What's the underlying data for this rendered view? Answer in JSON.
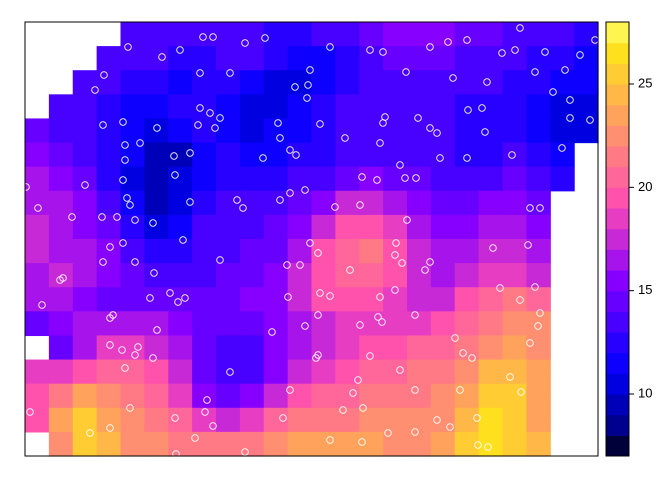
{
  "chart_data": {
    "type": "raster",
    "xlim": [
      0,
      573
    ],
    "ylim": [
      0,
      434
    ],
    "breaks": [
      7,
      8,
      9,
      10,
      11,
      12,
      13,
      14,
      15,
      16,
      17,
      18,
      19,
      20,
      21,
      22,
      23,
      24,
      25,
      26,
      27,
      28
    ],
    "colors": [
      "#00003a",
      "#00008f",
      "#0000b8",
      "#0000e0",
      "#0d00ff",
      "#2800ff",
      "#4800ff",
      "#6800ff",
      "#8700ff",
      "#a714eb",
      "#c729d6",
      "#e73dc2",
      "#ff52ad",
      "#ff6699",
      "#ff7a85",
      "#ff8f70",
      "#ffa35c",
      "#ffb847",
      "#ffcc33",
      "#ffe01f",
      "#fff550"
    ],
    "zticks": [
      10,
      15,
      20,
      25
    ],
    "raster": {
      "values": [
        [
          null,
          null,
          null,
          null,
          13,
          13,
          13,
          13,
          13,
          13,
          12,
          12,
          13,
          13,
          14,
          15,
          15,
          15,
          14,
          14,
          13,
          13,
          13,
          12
        ],
        [
          null,
          null,
          null,
          13,
          13,
          13,
          12,
          12,
          13,
          13,
          12,
          11,
          11,
          12,
          13,
          14,
          14,
          14,
          13,
          13,
          13,
          12,
          12,
          11
        ],
        [
          null,
          null,
          13,
          13,
          12,
          12,
          11,
          12,
          12,
          11,
          10,
          10,
          11,
          12,
          13,
          13,
          13,
          13,
          13,
          13,
          12,
          12,
          11,
          11
        ],
        [
          null,
          13,
          13,
          12,
          11,
          11,
          12,
          12,
          11,
          10,
          10,
          11,
          12,
          13,
          13,
          13,
          13,
          13,
          12,
          12,
          12,
          11,
          10,
          10
        ],
        [
          14,
          13,
          13,
          12,
          11,
          10,
          11,
          12,
          11,
          10,
          11,
          11,
          12,
          13,
          13,
          13,
          13,
          13,
          12,
          12,
          12,
          11,
          10,
          10
        ],
        [
          15,
          14,
          13,
          12,
          11,
          9,
          9,
          11,
          12,
          11,
          11,
          12,
          12,
          13,
          13,
          13,
          13,
          13,
          12,
          12,
          13,
          12,
          11,
          null
        ],
        [
          16,
          15,
          14,
          12,
          10,
          9,
          10,
          11,
          12,
          12,
          12,
          13,
          13,
          14,
          15,
          14,
          14,
          13,
          13,
          13,
          14,
          13,
          12,
          null
        ],
        [
          16,
          16,
          15,
          13,
          11,
          9,
          10,
          12,
          13,
          13,
          13,
          14,
          15,
          17,
          17,
          16,
          15,
          14,
          14,
          15,
          15,
          14,
          null,
          null
        ],
        [
          17,
          16,
          15,
          14,
          12,
          10,
          11,
          13,
          13,
          13,
          14,
          15,
          17,
          19,
          19,
          18,
          16,
          15,
          15,
          16,
          16,
          15,
          null,
          null
        ],
        [
          17,
          16,
          16,
          15,
          13,
          12,
          12,
          13,
          13,
          14,
          14,
          16,
          19,
          20,
          21,
          19,
          17,
          16,
          16,
          17,
          17,
          16,
          null,
          null
        ],
        [
          16,
          17,
          16,
          15,
          14,
          13,
          13,
          13,
          14,
          14,
          15,
          17,
          19,
          20,
          20,
          19,
          17,
          16,
          17,
          18,
          18,
          17,
          null,
          null
        ],
        [
          16,
          16,
          15,
          14,
          14,
          14,
          14,
          14,
          14,
          15,
          15,
          17,
          19,
          19,
          19,
          18,
          17,
          17,
          19,
          20,
          21,
          20,
          null,
          null
        ],
        [
          14,
          15,
          16,
          16,
          16,
          16,
          15,
          14,
          14,
          14,
          15,
          16,
          17,
          18,
          18,
          18,
          18,
          19,
          20,
          21,
          22,
          22,
          null,
          null
        ],
        [
          null,
          14,
          16,
          18,
          18,
          17,
          16,
          14,
          13,
          13,
          15,
          16,
          17,
          18,
          19,
          19,
          20,
          20,
          21,
          22,
          23,
          22,
          null,
          null
        ],
        [
          18,
          18,
          19,
          20,
          20,
          19,
          17,
          14,
          13,
          13,
          15,
          17,
          18,
          19,
          20,
          20,
          21,
          21,
          22,
          24,
          24,
          23,
          null,
          null
        ],
        [
          19,
          21,
          23,
          22,
          21,
          20,
          18,
          15,
          14,
          15,
          17,
          19,
          20,
          20,
          21,
          21,
          21,
          22,
          23,
          25,
          25,
          23,
          null,
          null
        ],
        [
          19,
          23,
          25,
          23,
          22,
          21,
          20,
          18,
          17,
          18,
          20,
          21,
          21,
          21,
          22,
          22,
          22,
          22,
          24,
          26,
          25,
          23,
          null,
          null
        ],
        [
          null,
          22,
          25,
          24,
          22,
          22,
          21,
          21,
          21,
          21,
          22,
          23,
          23,
          23,
          23,
          22,
          22,
          23,
          25,
          26,
          25,
          24,
          null,
          null
        ]
      ]
    },
    "points": {
      "x": [
        178,
        188,
        220,
        240,
        103,
        155,
        305,
        345,
        358,
        405,
        423,
        442,
        477,
        490,
        495,
        520,
        555,
        570,
        137,
        79,
        70,
        175,
        205,
        285,
        381,
        428,
        462,
        510,
        540,
        528,
        545,
        270,
        282,
        283,
        175,
        185,
        195,
        78,
        98,
        132,
        173,
        190,
        253,
        295,
        360,
        358,
        393,
        405,
        412,
        443,
        457,
        460,
        545,
        565,
        100,
        115,
        149,
        165,
        255,
        265,
        271,
        320,
        355,
        375,
        391,
        415,
        442,
        487,
        537,
        100,
        238,
        1,
        60,
        98,
        150,
        212,
        218,
        255,
        265,
        280,
        337,
        352,
        380,
        13,
        47,
        77,
        92,
        105,
        102,
        110,
        128,
        165,
        310,
        335,
        382,
        505,
        515,
        158,
        85,
        98,
        195,
        285,
        293,
        371,
        468,
        503,
        78,
        110,
        129,
        262,
        275,
        325,
        370,
        377,
        405,
        400,
        35,
        38,
        125,
        145,
        160,
        153,
        263,
        295,
        305,
        355,
        370,
        475,
        495,
        510,
        17,
        88,
        85,
        293,
        280,
        247,
        335,
        353,
        357,
        390,
        515,
        513,
        132,
        85,
        97,
        113,
        110,
        128,
        291,
        293,
        345,
        430,
        438,
        505,
        100,
        205,
        333,
        447,
        485,
        375,
        265,
        328,
        390,
        435,
        496,
        105,
        182,
        180,
        150,
        318,
        338,
        65,
        85,
        170,
        188,
        258,
        412,
        452,
        305,
        337,
        390,
        363,
        453,
        463,
        425,
        151,
        220,
        5
      ],
      "y": [
        419,
        419,
        413,
        418,
        409,
        406,
        409,
        406,
        404,
        409,
        414,
        416,
        403,
        406,
        428,
        404,
        401,
        416,
        399,
        381,
        366,
        383,
        383,
        386,
        384,
        378,
        374,
        384,
        386,
        364,
        356,
        369,
        358,
        371,
        348,
        343,
        338,
        331,
        334,
        328,
        331,
        328,
        333,
        332,
        339,
        333,
        338,
        328,
        323,
        346,
        348,
        324,
        338,
        336,
        311,
        313,
        300,
        303,
        318,
        306,
        301,
        318,
        313,
        291,
        278,
        298,
        298,
        301,
        308,
        296,
        298,
        269,
        271,
        276,
        281,
        256,
        248,
        256,
        263,
        266,
        279,
        276,
        278,
        248,
        239,
        239,
        239,
        251,
        258,
        236,
        233,
        254,
        249,
        251,
        236,
        248,
        248,
        216,
        209,
        213,
        196,
        213,
        203,
        213,
        208,
        211,
        194,
        194,
        183,
        191,
        191,
        186,
        201,
        193,
        194,
        186,
        176,
        178,
        158,
        163,
        158,
        154,
        159,
        163,
        160,
        159,
        166,
        168,
        156,
        169,
        151,
        141,
        138,
        141,
        130,
        124,
        131,
        139,
        134,
        141,
        143,
        130,
        126,
        111,
        106,
        109,
        101,
        98,
        98,
        101,
        100,
        118,
        103,
        113,
        88,
        84,
        76,
        98,
        79,
        86,
        66,
        63,
        66,
        66,
        64,
        48,
        56,
        44,
        38,
        46,
        48,
        23,
        28,
        18,
        30,
        38,
        36,
        38,
        16,
        14,
        24,
        23,
        11,
        9,
        29,
        2,
        4,
        44
      ],
      "color": "#ffffff"
    }
  }
}
